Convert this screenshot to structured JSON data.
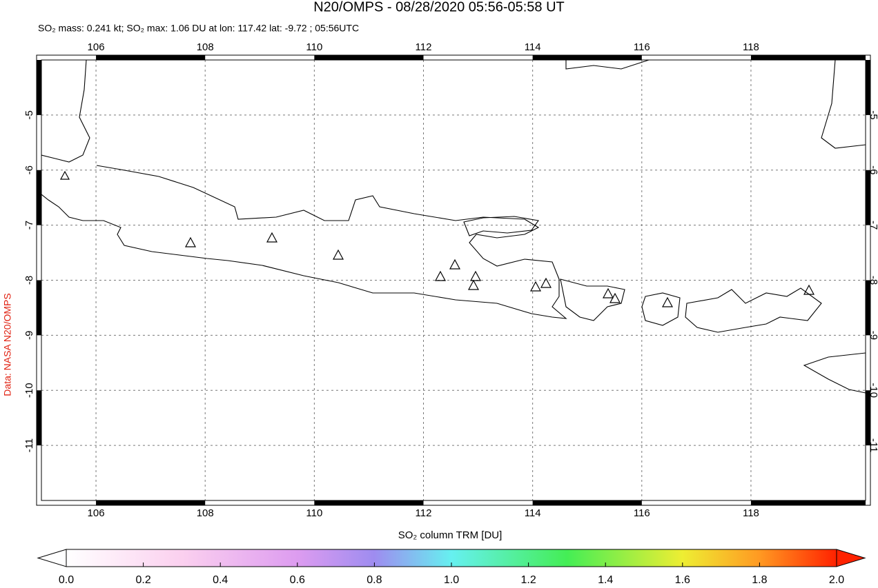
{
  "chart_data": {
    "type": "map",
    "title": "N20/OMPS - 08/28/2020 05:56-05:58 UT",
    "subtitle": "SO₂ mass: 0.241 kt; SO₂ max: 1.06 DU at lon: 117.42 lat: -9.72 ; 05:56UTC",
    "credit": "Data: NASA N20/OMPS",
    "xlim": [
      105,
      120.1
    ],
    "ylim": [
      -12,
      -4
    ],
    "xticks": [
      106,
      108,
      110,
      112,
      114,
      116,
      118
    ],
    "yticks": [
      -5,
      -6,
      -7,
      -8,
      -9,
      -10,
      -11
    ],
    "grid": true,
    "colorbar": {
      "label": "SO₂ column TRM [DU]",
      "lim": [
        0,
        2
      ],
      "ticks": [
        {
          "value": 0,
          "label": "0.0"
        },
        {
          "value": 0.2,
          "label": "0.2"
        },
        {
          "value": 0.4,
          "label": "0.4"
        },
        {
          "value": 0.6,
          "label": "0.6"
        },
        {
          "value": 0.8,
          "label": "0.8"
        },
        {
          "value": 1,
          "label": "1.0"
        },
        {
          "value": 1.2,
          "label": "1.2"
        },
        {
          "value": 1.4,
          "label": "1.4"
        },
        {
          "value": 1.6,
          "label": "1.6"
        },
        {
          "value": 1.8,
          "label": "1.8"
        },
        {
          "value": 2,
          "label": "2.0"
        }
      ]
    }
  }
}
